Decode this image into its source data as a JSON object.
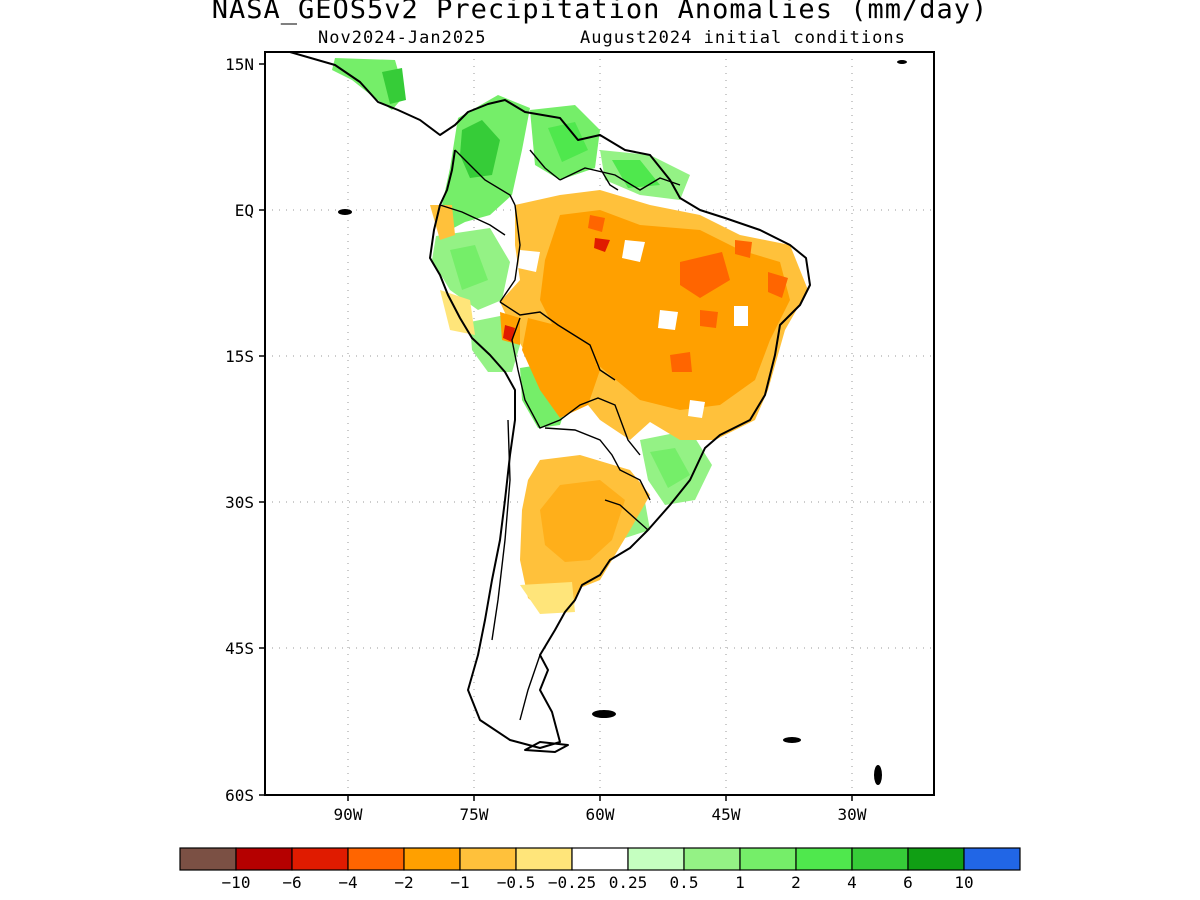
{
  "title": "NASA_GEOS5v2 Precipitation Anomalies (mm/day)",
  "subtitle_left": "Nov2024-Jan2025",
  "subtitle_right": "August2024 initial conditions",
  "map": {
    "region": "South America",
    "variable": "Precipitation anomaly",
    "units": "mm/day",
    "lon_range": [
      -95,
      -15
    ],
    "lat_range": [
      -60,
      15
    ],
    "lat_ticks": [
      "15N",
      "EQ",
      "15S",
      "30S",
      "45S",
      "60S"
    ],
    "lon_ticks": [
      "90W",
      "75W",
      "60W",
      "45W",
      "30W"
    ],
    "grid": "dotted"
  },
  "colorbar": {
    "colors": [
      "#7b5044",
      "#b50000",
      "#e01b00",
      "#ff6500",
      "#ffa000",
      "#ffc13b",
      "#ffe57a",
      "#ffffff",
      "#c5ffc0",
      "#94f285",
      "#75ee69",
      "#4fe84d",
      "#36cc38",
      "#109f14",
      "#2166e6"
    ],
    "labels": [
      "-10",
      "-6",
      "-4",
      "-2",
      "-1",
      "-0.5",
      "-0.25",
      "0.25",
      "0.5",
      "1",
      "2",
      "4",
      "6",
      "10"
    ]
  }
}
